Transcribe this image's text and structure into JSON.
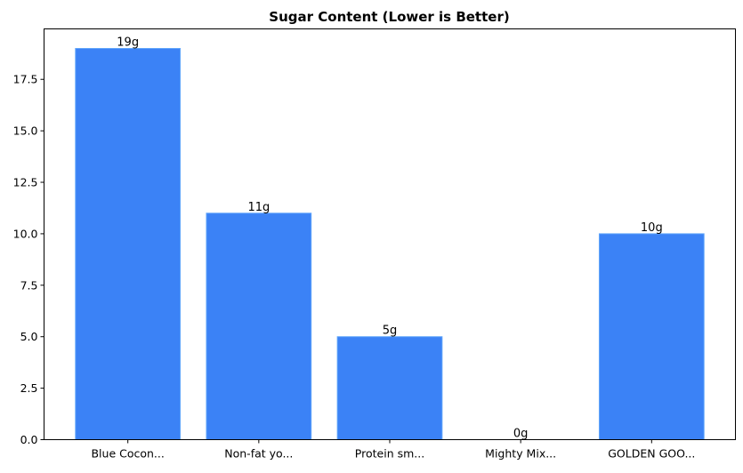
{
  "chart_data": {
    "type": "bar",
    "title": "Sugar Content (Lower is Better)",
    "xlabel": "",
    "ylabel": "",
    "categories": [
      "Blue Cocon...",
      "Non-fat yo...",
      "Protein sm...",
      "Mighty Mix...",
      "GOLDEN GOO..."
    ],
    "values": [
      19,
      11,
      5,
      0,
      10
    ],
    "data_labels": [
      "19g",
      "11g",
      "5g",
      "0g",
      "10g"
    ],
    "ylim": [
      0,
      19.95
    ],
    "yticks": [
      0,
      2.5,
      5,
      7.5,
      10,
      12.5,
      15,
      17.5
    ],
    "ytick_labels": [
      "0.0",
      "2.5",
      "5.0",
      "7.5",
      "10.0",
      "12.5",
      "15.0",
      "17.5"
    ],
    "grid": false,
    "bar_color": "#3b82f6",
    "bar_edge_color": "#60a5fa"
  }
}
